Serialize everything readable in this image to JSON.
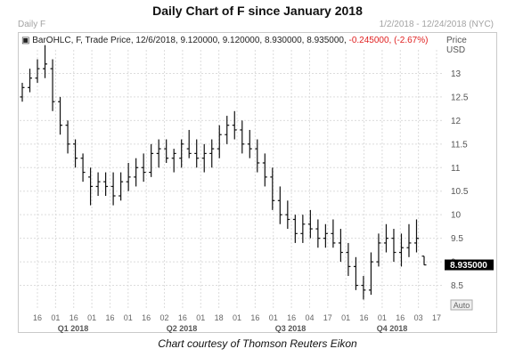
{
  "title": "Daily Chart of F since January 2018",
  "header": {
    "left_label": "Daily F",
    "right_label": "1/2/2018 - 12/24/2018 (NYC)"
  },
  "info_line": {
    "series": "BarOHLC, F, Trade Price,",
    "date": "12/6/2018,",
    "ohlc": "9.120000, 9.120000, 8.930000, 8.935000,",
    "change": "-0.245000, (-2.67%)"
  },
  "price_axis_label": [
    "Price",
    "USD"
  ],
  "auto_label": "Auto",
  "credit": "Chart courtesy of Thomson Reuters Eikon",
  "colors": {
    "bars": "#111111",
    "grid": "#dcdcdc",
    "negative": "#e02020",
    "tag_bg": "#000000"
  },
  "chart_data": {
    "type": "bar",
    "style": "OHLC",
    "title": "Daily Chart of F since January 2018",
    "ylim": [
      8.0,
      13.5
    ],
    "y_ticks": [
      8.5,
      9,
      9.5,
      10,
      10.5,
      11,
      11.5,
      12,
      12.5,
      13
    ],
    "grid": true,
    "last_price_tag": "8.935000",
    "last_price": 8.935,
    "x_tick_labels": [
      "16",
      "01",
      "16",
      "01",
      "16",
      "01",
      "16",
      "02",
      "16",
      "01",
      "18",
      "01",
      "16",
      "01",
      "16",
      "04",
      "17",
      "01",
      "16",
      "01",
      "16",
      "03",
      "17"
    ],
    "quarters": [
      "Q1 2018",
      "Q2 2018",
      "Q3 2018",
      "Q4 2018"
    ],
    "series": [
      {
        "name": "F",
        "values": [
          [
            12.5,
            12.8,
            12.4,
            12.7
          ],
          [
            12.7,
            13.1,
            12.6,
            12.9
          ],
          [
            12.9,
            13.3,
            12.8,
            13.1
          ],
          [
            13.1,
            13.6,
            12.9,
            13.2
          ],
          [
            13.1,
            13.3,
            12.2,
            12.4
          ],
          [
            12.4,
            12.5,
            11.7,
            11.9
          ],
          [
            11.9,
            12.0,
            11.3,
            11.5
          ],
          [
            11.5,
            11.6,
            11.0,
            11.2
          ],
          [
            11.2,
            11.3,
            10.7,
            10.9
          ],
          [
            10.8,
            11.0,
            10.2,
            10.6
          ],
          [
            10.6,
            10.9,
            10.4,
            10.7
          ],
          [
            10.7,
            10.9,
            10.4,
            10.6
          ],
          [
            10.6,
            10.9,
            10.2,
            10.4
          ],
          [
            10.4,
            10.9,
            10.3,
            10.7
          ],
          [
            10.7,
            11.1,
            10.5,
            10.8
          ],
          [
            10.8,
            11.2,
            10.6,
            11.0
          ],
          [
            11.0,
            11.3,
            10.7,
            10.9
          ],
          [
            10.9,
            11.5,
            10.8,
            11.3
          ],
          [
            11.3,
            11.6,
            11.0,
            11.4
          ],
          [
            11.4,
            11.6,
            11.1,
            11.2
          ],
          [
            11.2,
            11.4,
            10.9,
            11.3
          ],
          [
            11.2,
            11.6,
            11.0,
            11.5
          ],
          [
            11.4,
            11.8,
            11.2,
            11.3
          ],
          [
            11.3,
            11.6,
            11.0,
            11.2
          ],
          [
            11.2,
            11.5,
            10.9,
            11.3
          ],
          [
            11.3,
            11.6,
            11.0,
            11.4
          ],
          [
            11.4,
            11.9,
            11.2,
            11.7
          ],
          [
            11.7,
            12.1,
            11.5,
            11.9
          ],
          [
            11.9,
            12.2,
            11.6,
            11.8
          ],
          [
            11.8,
            12.0,
            11.3,
            11.5
          ],
          [
            11.5,
            11.8,
            11.2,
            11.4
          ],
          [
            11.4,
            11.6,
            10.9,
            11.1
          ],
          [
            11.1,
            11.3,
            10.6,
            10.8
          ],
          [
            10.8,
            11.0,
            10.1,
            10.3
          ],
          [
            10.3,
            10.6,
            9.8,
            10.0
          ],
          [
            10.0,
            10.3,
            9.7,
            9.9
          ],
          [
            9.9,
            10.0,
            9.4,
            9.6
          ],
          [
            9.6,
            10.0,
            9.4,
            9.8
          ],
          [
            9.8,
            10.1,
            9.5,
            9.7
          ],
          [
            9.7,
            9.9,
            9.3,
            9.5
          ],
          [
            9.5,
            9.8,
            9.3,
            9.6
          ],
          [
            9.6,
            9.9,
            9.3,
            9.4
          ],
          [
            9.4,
            9.7,
            9.0,
            9.2
          ],
          [
            9.2,
            9.4,
            8.7,
            8.9
          ],
          [
            8.9,
            9.1,
            8.4,
            8.5
          ],
          [
            8.5,
            8.7,
            8.2,
            8.4
          ],
          [
            8.4,
            9.2,
            8.3,
            9.0
          ],
          [
            9.0,
            9.6,
            8.9,
            9.4
          ],
          [
            9.4,
            9.8,
            9.2,
            9.5
          ],
          [
            9.5,
            9.7,
            9.0,
            9.2
          ],
          [
            9.2,
            9.6,
            8.9,
            9.3
          ],
          [
            9.3,
            9.8,
            9.1,
            9.4
          ],
          [
            9.4,
            9.9,
            9.2,
            9.5
          ],
          [
            9.12,
            9.12,
            8.93,
            8.935
          ]
        ]
      }
    ]
  }
}
